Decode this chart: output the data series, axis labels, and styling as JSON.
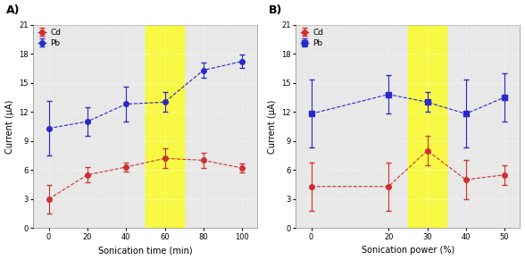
{
  "panel_A": {
    "title": "A)",
    "xlabel": "Sonication time (min)",
    "ylabel": "Current (μA)",
    "x": [
      0,
      20,
      40,
      60,
      80,
      100
    ],
    "Cd_y": [
      3.0,
      5.5,
      6.3,
      7.2,
      7.0,
      6.2
    ],
    "Cd_err": [
      1.5,
      0.8,
      0.5,
      1.0,
      0.8,
      0.5
    ],
    "Pb_y": [
      10.3,
      11.0,
      12.8,
      13.0,
      16.3,
      17.2
    ],
    "Pb_err": [
      2.8,
      1.5,
      1.8,
      1.0,
      0.8,
      0.7
    ],
    "ylim": [
      0,
      21
    ],
    "yticks": [
      0,
      3,
      6,
      9,
      12,
      15,
      18,
      21
    ],
    "xticks": [
      0,
      20,
      40,
      60,
      80,
      100
    ],
    "xlim": [
      -8,
      108
    ],
    "highlight_xmin": 50,
    "highlight_xmax": 70
  },
  "panel_B": {
    "title": "B)",
    "xlabel": "Sonication power (%)",
    "ylabel": "Current (μA)",
    "x": [
      0,
      20,
      30,
      40,
      50
    ],
    "Cd_y": [
      4.3,
      4.3,
      8.0,
      5.0,
      5.5
    ],
    "Cd_err": [
      2.5,
      2.5,
      1.5,
      2.0,
      1.0
    ],
    "Pb_y": [
      11.8,
      13.8,
      13.0,
      11.8,
      13.5
    ],
    "Pb_err": [
      3.5,
      2.0,
      1.0,
      3.5,
      2.5
    ],
    "ylim": [
      0,
      21
    ],
    "yticks": [
      0,
      3,
      6,
      9,
      12,
      15,
      18,
      21
    ],
    "xticks": [
      0,
      20,
      30,
      40,
      50
    ],
    "xlim": [
      -4,
      54
    ],
    "highlight_xmin": 25,
    "highlight_xmax": 35
  },
  "Cd_color": "#d03030",
  "Pb_color": "#2828cc",
  "highlight_color": "#ffff00",
  "highlight_alpha": 0.7,
  "line_style": "--",
  "markersize": 4,
  "capsize": 2,
  "elinewidth": 0.8,
  "linewidth": 0.8,
  "bg_color": "#e8e8e8"
}
